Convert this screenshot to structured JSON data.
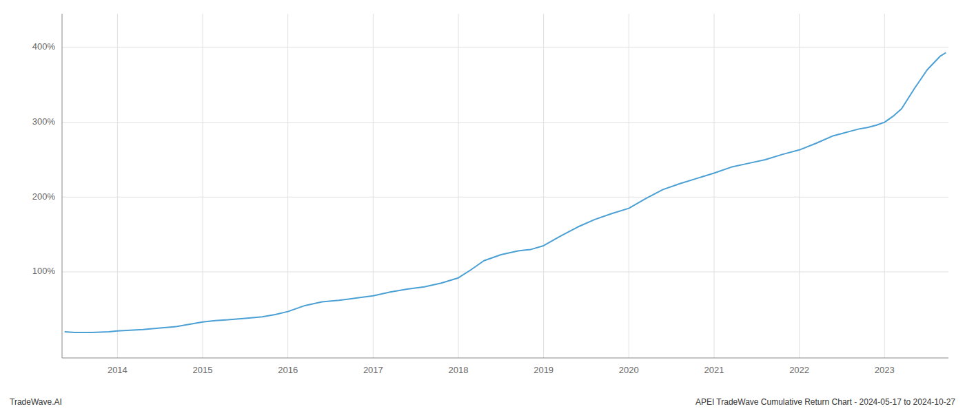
{
  "chart_data": {
    "type": "line",
    "title": "APEI TradeWave Cumulative Return Chart - 2024-05-17 to 2024-10-27",
    "annotations": [
      "TradeWave.AI"
    ],
    "color": "#4a9fd4",
    "grid": true,
    "x": [
      2013.38,
      2013.5,
      2013.7,
      2013.9,
      2014.0,
      2014.15,
      2014.3,
      2014.5,
      2014.7,
      2014.85,
      2015.0,
      2015.15,
      2015.3,
      2015.5,
      2015.7,
      2015.85,
      2016.0,
      2016.2,
      2016.4,
      2016.6,
      2016.8,
      2017.0,
      2017.2,
      2017.4,
      2017.6,
      2017.8,
      2018.0,
      2018.15,
      2018.3,
      2018.5,
      2018.7,
      2018.85,
      2019.0,
      2019.2,
      2019.4,
      2019.6,
      2019.8,
      2020.0,
      2020.2,
      2020.4,
      2020.6,
      2020.8,
      2021.0,
      2021.2,
      2021.4,
      2021.6,
      2021.8,
      2022.0,
      2022.2,
      2022.4,
      2022.5,
      2022.6,
      2022.7,
      2022.8,
      2022.9,
      2023.0,
      2023.1,
      2023.2,
      2023.35,
      2023.5,
      2023.65,
      2023.72
    ],
    "values": [
      20,
      19,
      19,
      20,
      21,
      22,
      23,
      25,
      27,
      30,
      33,
      35,
      36,
      38,
      40,
      43,
      47,
      55,
      60,
      62,
      65,
      68,
      73,
      77,
      80,
      85,
      92,
      103,
      115,
      123,
      128,
      130,
      135,
      148,
      160,
      170,
      178,
      185,
      198,
      210,
      218,
      225,
      232,
      240,
      245,
      250,
      257,
      263,
      272,
      282,
      285,
      288,
      291,
      293,
      296,
      300,
      308,
      318,
      345,
      370,
      388,
      393
    ],
    "xlim": [
      2013.35,
      2023.75
    ],
    "ylim": [
      -15,
      445
    ],
    "xticks": [
      2014,
      2015,
      2016,
      2017,
      2018,
      2019,
      2020,
      2021,
      2022,
      2023
    ],
    "yticks": [
      {
        "value": 100,
        "label": "100%"
      },
      {
        "value": 200,
        "label": "200%"
      },
      {
        "value": 300,
        "label": "300%"
      },
      {
        "value": 400,
        "label": "400%"
      }
    ]
  }
}
